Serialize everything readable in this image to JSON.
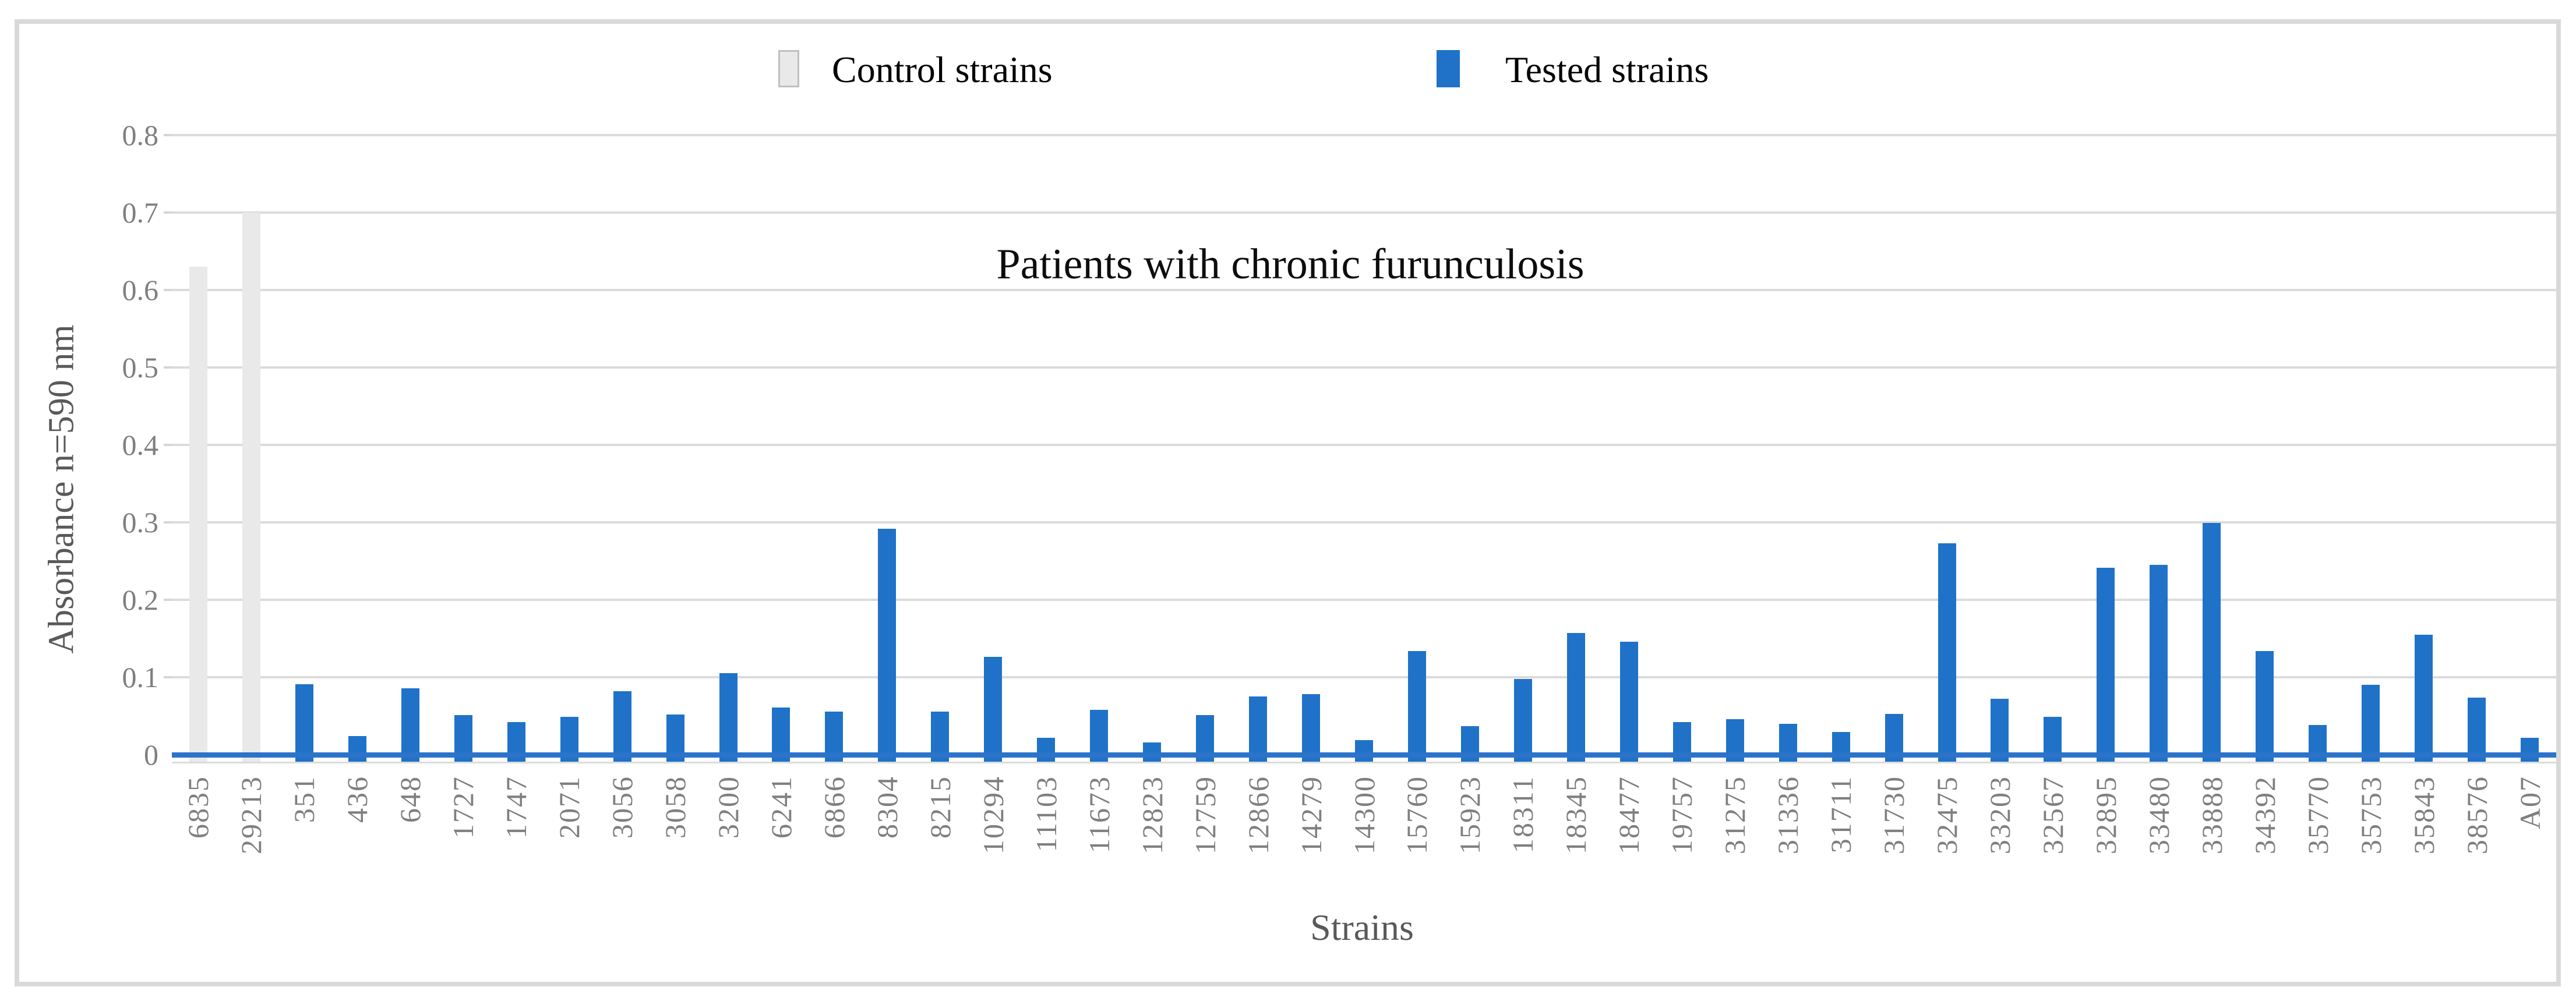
{
  "figure": {
    "title": "Patients with chronic furunculosis",
    "x_axis_title": "Strains",
    "y_axis_title": "Absorbance n=590 nm"
  },
  "legend": {
    "control_label": "Control strains",
    "tested_label": "Tested strains"
  },
  "colors": {
    "tested_bar": "#1F72C8",
    "control_bar": "#E9E9E9",
    "control_swatch_border": "#BFBFBF",
    "gridline": "#DCDCDC",
    "frame": "#D9D9D9",
    "axis_line": "#2B74C9",
    "tick_text": "#7F7F7F",
    "axis_title_text": "#595959",
    "title_text": "#0d0d0d"
  },
  "chart_data": {
    "type": "bar",
    "title": "Patients with chronic furunculosis",
    "xlabel": "Strains",
    "ylabel": "Absorbance n=590 nm",
    "ylim": [
      0,
      0.8
    ],
    "ytick_interval": 0.1,
    "yticks": [
      "0",
      "0.1",
      "0.2",
      "0.3",
      "0.4",
      "0.5",
      "0.6",
      "0.7",
      "0.8"
    ],
    "grid": true,
    "legend_position": "top",
    "series_names": [
      "Control strains",
      "Tested strains"
    ],
    "bars": [
      {
        "label": "6835",
        "value": 0.63,
        "series": "control"
      },
      {
        "label": "29213",
        "value": 0.7,
        "series": "control"
      },
      {
        "label": "351",
        "value": 0.091,
        "series": "tested"
      },
      {
        "label": "436",
        "value": 0.024,
        "series": "tested"
      },
      {
        "label": "648",
        "value": 0.086,
        "series": "tested"
      },
      {
        "label": "1727",
        "value": 0.051,
        "series": "tested"
      },
      {
        "label": "1747",
        "value": 0.042,
        "series": "tested"
      },
      {
        "label": "2071",
        "value": 0.049,
        "series": "tested"
      },
      {
        "label": "3056",
        "value": 0.082,
        "series": "tested"
      },
      {
        "label": "3058",
        "value": 0.052,
        "series": "tested"
      },
      {
        "label": "3200",
        "value": 0.105,
        "series": "tested"
      },
      {
        "label": "6241",
        "value": 0.061,
        "series": "tested"
      },
      {
        "label": "6866",
        "value": 0.056,
        "series": "tested"
      },
      {
        "label": "8304",
        "value": 0.292,
        "series": "tested"
      },
      {
        "label": "8215",
        "value": 0.056,
        "series": "tested"
      },
      {
        "label": "10294",
        "value": 0.126,
        "series": "tested"
      },
      {
        "label": "11103",
        "value": 0.022,
        "series": "tested"
      },
      {
        "label": "11673",
        "value": 0.058,
        "series": "tested"
      },
      {
        "label": "12823",
        "value": 0.016,
        "series": "tested"
      },
      {
        "label": "12759",
        "value": 0.051,
        "series": "tested"
      },
      {
        "label": "12866",
        "value": 0.075,
        "series": "tested"
      },
      {
        "label": "14279",
        "value": 0.078,
        "series": "tested"
      },
      {
        "label": "14300",
        "value": 0.019,
        "series": "tested"
      },
      {
        "label": "15760",
        "value": 0.134,
        "series": "tested"
      },
      {
        "label": "15923",
        "value": 0.037,
        "series": "tested"
      },
      {
        "label": "18311",
        "value": 0.098,
        "series": "tested"
      },
      {
        "label": "18345",
        "value": 0.157,
        "series": "tested"
      },
      {
        "label": "18477",
        "value": 0.146,
        "series": "tested"
      },
      {
        "label": "19757",
        "value": 0.042,
        "series": "tested"
      },
      {
        "label": "31275",
        "value": 0.046,
        "series": "tested"
      },
      {
        "label": "31336",
        "value": 0.04,
        "series": "tested"
      },
      {
        "label": "31711",
        "value": 0.029,
        "series": "tested"
      },
      {
        "label": "31730",
        "value": 0.053,
        "series": "tested"
      },
      {
        "label": "32475",
        "value": 0.273,
        "series": "tested"
      },
      {
        "label": "33203",
        "value": 0.072,
        "series": "tested"
      },
      {
        "label": "32567",
        "value": 0.049,
        "series": "tested"
      },
      {
        "label": "32895",
        "value": 0.241,
        "series": "tested"
      },
      {
        "label": "33480",
        "value": 0.245,
        "series": "tested"
      },
      {
        "label": "33888",
        "value": 0.299,
        "series": "tested"
      },
      {
        "label": "34392",
        "value": 0.134,
        "series": "tested"
      },
      {
        "label": "35770",
        "value": 0.038,
        "series": "tested"
      },
      {
        "label": "35753",
        "value": 0.09,
        "series": "tested"
      },
      {
        "label": "35843",
        "value": 0.155,
        "series": "tested"
      },
      {
        "label": "38576",
        "value": 0.074,
        "series": "tested"
      },
      {
        "label": "A07",
        "value": 0.022,
        "series": "tested"
      }
    ]
  }
}
